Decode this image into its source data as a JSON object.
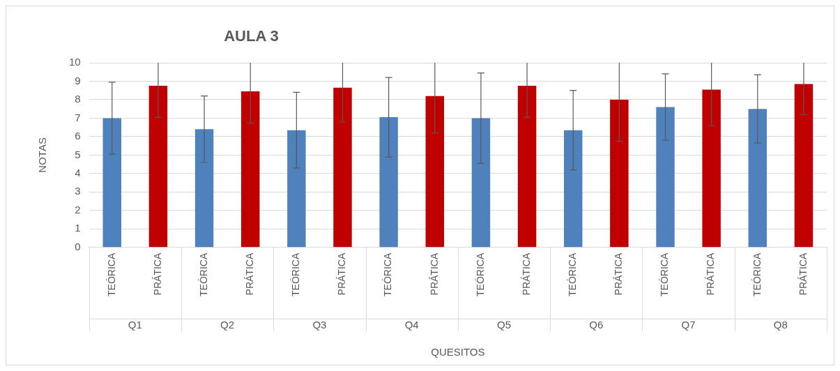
{
  "chart_data": {
    "type": "bar",
    "title": "AULA 3",
    "xlabel": "QUESITOS",
    "ylabel": "NOTAS",
    "categories": [
      "TEÓRICA",
      "PRÁTICA",
      "TEÓRICA",
      "PRÁTICA",
      "TEÓRICA",
      "PRÁTICA",
      "TEÓRICA",
      "PRÁTICA",
      "TEÓRICA",
      "PRÁTICA",
      "TEÓRICA",
      "PRÁTICA",
      "TEÓRICA",
      "PRÁTICA",
      "TEÓRICA",
      "PRÁTICA"
    ],
    "values": [
      7.0,
      8.75,
      6.4,
      8.45,
      6.35,
      8.65,
      7.05,
      8.2,
      7.0,
      8.75,
      6.35,
      8.0,
      7.6,
      8.55,
      7.5,
      8.85
    ],
    "colors": [
      "#4f81bd",
      "#c00000",
      "#4f81bd",
      "#c00000",
      "#4f81bd",
      "#c00000",
      "#4f81bd",
      "#c00000",
      "#4f81bd",
      "#c00000",
      "#4f81bd",
      "#c00000",
      "#4f81bd",
      "#c00000",
      "#4f81bd",
      "#c00000"
    ],
    "errors": [
      1.95,
      [
        7.05,
        10
      ],
      1.8,
      [
        6.75,
        10
      ],
      2.05,
      [
        6.8,
        10
      ],
      2.15,
      [
        6.2,
        10
      ],
      2.45,
      [
        7.05,
        10
      ],
      2.15,
      [
        5.75,
        10
      ],
      1.8,
      [
        6.6,
        10
      ],
      1.85,
      [
        7.2,
        10
      ]
    ],
    "annotations": [
      "Q1",
      "Q2",
      "Q3",
      "Q4",
      "Q5",
      "Q6",
      "Q7",
      "Q8"
    ],
    "ylim": [
      0,
      10
    ],
    "yticks": [
      0,
      1,
      2,
      3,
      4,
      5,
      6,
      7,
      8,
      9,
      10
    ],
    "grid": "y"
  }
}
